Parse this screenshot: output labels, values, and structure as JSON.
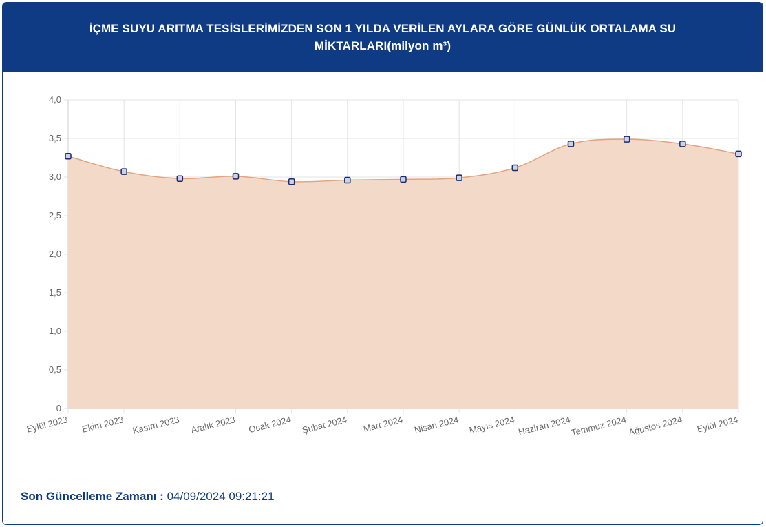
{
  "header": {
    "title_line1": "İÇME SUYU ARITMA TESİSLERİMİZDEN SON 1 YILDA VERİLEN AYLARA GÖRE GÜNLÜK ORTALAMA SU",
    "title_line2": "MİKTARLARI(milyon m³)"
  },
  "footer": {
    "label": "Son Güncelleme Zamanı :",
    "value": "04/09/2024 09:21:21"
  },
  "colors": {
    "header_bg": "#0f3b84",
    "area_fill": "#f3d9c7",
    "line": "#e2a37e",
    "marker_stroke": "#1a2a6c",
    "marker_fill": "#c9d3ec",
    "grid": "#e3e3e3"
  },
  "chart_data": {
    "type": "area",
    "categories": [
      "Eylül 2023",
      "Ekim 2023",
      "Kasım 2023",
      "Aralık 2023",
      "Ocak 2024",
      "Şubat 2024",
      "Mart 2024",
      "Nisan 2024",
      "Mayıs 2024",
      "Haziran 2024",
      "Temmuz 2024",
      "Ağustos 2024",
      "Eylül 2024"
    ],
    "values": [
      3.27,
      3.07,
      2.98,
      3.01,
      2.94,
      2.96,
      2.97,
      2.99,
      3.12,
      3.43,
      3.49,
      3.43,
      3.3
    ],
    "ylim": [
      0,
      4
    ],
    "yticks": [
      "0",
      "0,5",
      "1,0",
      "1,5",
      "2,0",
      "2,5",
      "3,0",
      "3,5",
      "4,0"
    ],
    "ytick_values": [
      0,
      0.5,
      1,
      1.5,
      2,
      2.5,
      3,
      3.5,
      4
    ],
    "grid": true,
    "legend": "none"
  }
}
